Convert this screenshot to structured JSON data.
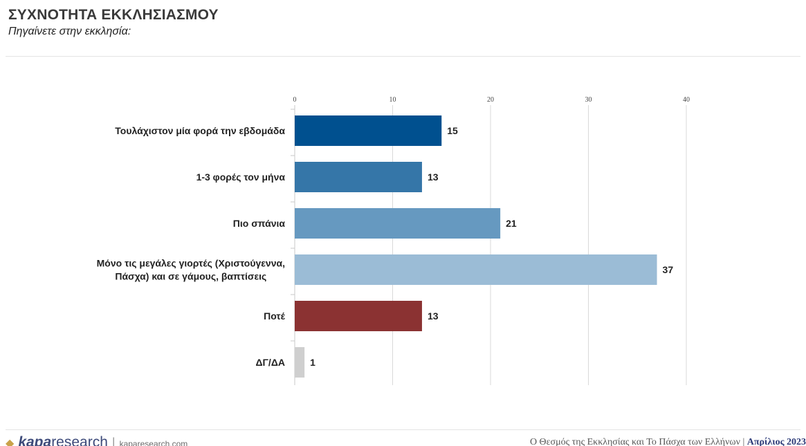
{
  "page": {
    "title": "ΣΥΧΝΟΤΗΤΑ ΕΚΚΛΗΣΙΑΣΜΟΥ",
    "subtitle": "Πηγαίνετε στην εκκλησία:"
  },
  "footer": {
    "brand_bold": "kapa",
    "brand_light": "research",
    "url": "kaparesearch.com",
    "report": "Ο Θεσμός της Εκκλησίας και Το Πάσχα των Ελλήνων |",
    "date": "Απρίλιος 2023"
  },
  "colors": {
    "series": [
      "#00508f",
      "#3576a8",
      "#6699c0",
      "#9bbcd6",
      "#8b3232",
      "#cfcfcf"
    ]
  },
  "chart_data": {
    "type": "bar",
    "orientation": "horizontal",
    "categories": [
      "Τουλάχιστον μία φορά την εβδομάδα",
      "1-3 φορές τον μήνα",
      "Πιο σπάνια",
      "Μόνο τις μεγάλες γιορτές (Χριστούγεννα, Πάσχα) και σε γάμους, βαπτίσεις",
      "Ποτέ",
      "ΔΓ/ΔΑ"
    ],
    "values": [
      15,
      13,
      21,
      37,
      13,
      1
    ],
    "data_labels": [
      "15",
      "13",
      "21",
      "37",
      "13",
      "1"
    ],
    "xlim": [
      0,
      40
    ],
    "ticks": [
      0,
      10,
      20,
      30,
      40
    ],
    "tick_labels": [
      "0",
      "10",
      "20",
      "30",
      "40"
    ],
    "axis_position": "top",
    "grid": true,
    "legend": "none"
  }
}
